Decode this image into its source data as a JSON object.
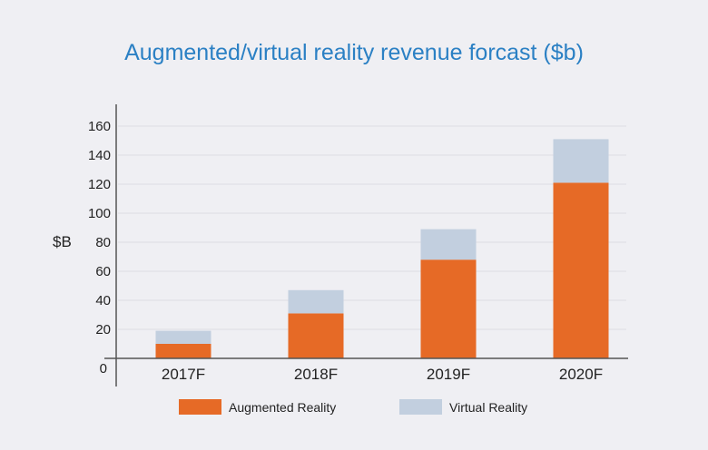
{
  "chart_data": {
    "type": "bar",
    "stacked": true,
    "title": "Augmented/virtual reality revenue forcast ($b)",
    "ylabel": "$B",
    "xlabel": "",
    "categories": [
      "2017F",
      "2018F",
      "2019F",
      "2020F"
    ],
    "series": [
      {
        "name": "Augmented Reality",
        "values": [
          10,
          31,
          68,
          121
        ],
        "color": "#e66a26"
      },
      {
        "name": "Virtual Reality",
        "values": [
          9,
          16,
          21,
          30
        ],
        "color": "#c2cfdf"
      }
    ],
    "ylim": [
      0,
      160
    ],
    "yticks": [
      0,
      20,
      40,
      60,
      80,
      100,
      120,
      140,
      160
    ],
    "grid": true,
    "legend": "bottom",
    "title_color": "#2b80c4"
  }
}
